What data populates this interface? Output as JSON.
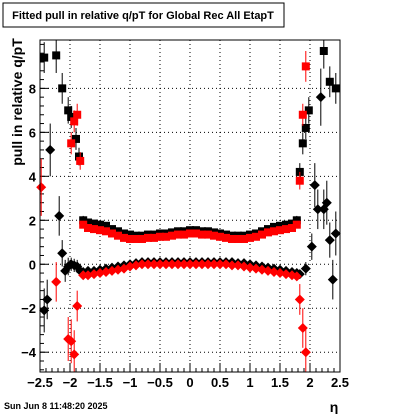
{
  "chart_data": {
    "type": "scatter",
    "title": "Fitted pull in relative q/pT for Global Rec All EtapT",
    "xlabel": "η",
    "ylabel": "pull in relative q/pT",
    "xlim": [
      -2.5,
      2.5
    ],
    "ylim": [
      -4.9,
      10.2
    ],
    "x_ticks": [
      "-2.5",
      "-2",
      "-1.5",
      "-1",
      "-0.5",
      "0",
      "0.5",
      "1",
      "1.5",
      "2",
      "2.5"
    ],
    "y_ticks": [
      "-4",
      "-2",
      "0",
      "2",
      "4",
      "6",
      "8"
    ],
    "grid": true,
    "timestamp": "Sun Jun  8 11:48:20 2025",
    "series": [
      {
        "marker": "square",
        "color": "#000000",
        "points": [
          {
            "x": -2.43,
            "y": 9.4,
            "err": 0.7
          },
          {
            "x": -2.23,
            "y": 9.5,
            "err": 0.8
          },
          {
            "x": -2.13,
            "y": 8.0,
            "err": 0.7
          },
          {
            "x": -2.03,
            "y": 7.0,
            "err": 0.6
          },
          {
            "x": -1.98,
            "y": 6.7,
            "err": 0.5
          },
          {
            "x": -1.9,
            "y": 5.7,
            "err": 0.5
          },
          {
            "x": -1.85,
            "y": 4.9,
            "err": 0.4
          },
          {
            "x": -1.78,
            "y": 2.0,
            "err": 0.2
          },
          {
            "x": -1.7,
            "y": 1.9
          },
          {
            "x": -1.6,
            "y": 1.85
          },
          {
            "x": -1.5,
            "y": 1.8
          },
          {
            "x": -1.4,
            "y": 1.75
          },
          {
            "x": -1.3,
            "y": 1.6
          },
          {
            "x": -1.2,
            "y": 1.5
          },
          {
            "x": -1.1,
            "y": 1.4
          },
          {
            "x": -1.0,
            "y": 1.35
          },
          {
            "x": -0.9,
            "y": 1.3
          },
          {
            "x": -0.8,
            "y": 1.3
          },
          {
            "x": -0.7,
            "y": 1.35
          },
          {
            "x": -0.6,
            "y": 1.35
          },
          {
            "x": -0.5,
            "y": 1.4
          },
          {
            "x": -0.4,
            "y": 1.4
          },
          {
            "x": -0.3,
            "y": 1.45
          },
          {
            "x": -0.2,
            "y": 1.5
          },
          {
            "x": -0.1,
            "y": 1.5
          },
          {
            "x": 0.0,
            "y": 1.55
          },
          {
            "x": 0.1,
            "y": 1.55
          },
          {
            "x": 0.2,
            "y": 1.5
          },
          {
            "x": 0.3,
            "y": 1.5
          },
          {
            "x": 0.4,
            "y": 1.45
          },
          {
            "x": 0.5,
            "y": 1.4
          },
          {
            "x": 0.6,
            "y": 1.35
          },
          {
            "x": 0.7,
            "y": 1.3
          },
          {
            "x": 0.8,
            "y": 1.3
          },
          {
            "x": 0.9,
            "y": 1.3
          },
          {
            "x": 1.0,
            "y": 1.35
          },
          {
            "x": 1.1,
            "y": 1.4
          },
          {
            "x": 1.2,
            "y": 1.5
          },
          {
            "x": 1.3,
            "y": 1.6
          },
          {
            "x": 1.4,
            "y": 1.7
          },
          {
            "x": 1.5,
            "y": 1.75
          },
          {
            "x": 1.6,
            "y": 1.8
          },
          {
            "x": 1.7,
            "y": 1.85
          },
          {
            "x": 1.78,
            "y": 2.0,
            "err": 0.2
          },
          {
            "x": 1.83,
            "y": 4.2,
            "err": 0.4
          },
          {
            "x": 1.88,
            "y": 5.5,
            "err": 0.5
          },
          {
            "x": 1.93,
            "y": 6.2,
            "err": 0.5
          },
          {
            "x": 1.98,
            "y": 7.0,
            "err": 0.6
          },
          {
            "x": 2.23,
            "y": 9.7,
            "err": 0.8
          },
          {
            "x": 2.33,
            "y": 8.3,
            "err": 0.7
          },
          {
            "x": 2.43,
            "y": 8.0,
            "err": 0.7
          }
        ]
      },
      {
        "marker": "square",
        "color": "#ff0000",
        "points": [
          {
            "x": -1.98,
            "y": 5.5,
            "err": 0.5
          },
          {
            "x": -1.93,
            "y": 6.5,
            "err": 0.5
          },
          {
            "x": -1.88,
            "y": 6.8,
            "err": 0.5
          },
          {
            "x": -1.83,
            "y": 4.7,
            "err": 0.4
          },
          {
            "x": -1.78,
            "y": 1.8
          },
          {
            "x": -1.7,
            "y": 1.65
          },
          {
            "x": -1.6,
            "y": 1.6
          },
          {
            "x": -1.5,
            "y": 1.55
          },
          {
            "x": -1.4,
            "y": 1.5
          },
          {
            "x": -1.3,
            "y": 1.4
          },
          {
            "x": -1.2,
            "y": 1.3
          },
          {
            "x": -1.1,
            "y": 1.2
          },
          {
            "x": -1.0,
            "y": 1.15
          },
          {
            "x": -0.9,
            "y": 1.15
          },
          {
            "x": -0.8,
            "y": 1.15
          },
          {
            "x": -0.7,
            "y": 1.2
          },
          {
            "x": -0.6,
            "y": 1.2
          },
          {
            "x": -0.5,
            "y": 1.25
          },
          {
            "x": -0.4,
            "y": 1.25
          },
          {
            "x": -0.3,
            "y": 1.3
          },
          {
            "x": -0.2,
            "y": 1.35
          },
          {
            "x": -0.1,
            "y": 1.35
          },
          {
            "x": 0.0,
            "y": 1.4
          },
          {
            "x": 0.1,
            "y": 1.4
          },
          {
            "x": 0.2,
            "y": 1.35
          },
          {
            "x": 0.3,
            "y": 1.35
          },
          {
            "x": 0.4,
            "y": 1.3
          },
          {
            "x": 0.5,
            "y": 1.25
          },
          {
            "x": 0.6,
            "y": 1.2
          },
          {
            "x": 0.7,
            "y": 1.15
          },
          {
            "x": 0.8,
            "y": 1.15
          },
          {
            "x": 0.9,
            "y": 1.15
          },
          {
            "x": 1.0,
            "y": 1.2
          },
          {
            "x": 1.1,
            "y": 1.25
          },
          {
            "x": 1.2,
            "y": 1.35
          },
          {
            "x": 1.3,
            "y": 1.45
          },
          {
            "x": 1.4,
            "y": 1.5
          },
          {
            "x": 1.5,
            "y": 1.55
          },
          {
            "x": 1.6,
            "y": 1.6
          },
          {
            "x": 1.7,
            "y": 1.65
          },
          {
            "x": 1.78,
            "y": 1.8
          },
          {
            "x": 1.83,
            "y": 3.8,
            "err": 0.4
          },
          {
            "x": 1.88,
            "y": 6.8,
            "err": 0.5
          },
          {
            "x": 1.93,
            "y": 9.0,
            "err": 0.7
          }
        ]
      },
      {
        "marker": "diamond",
        "color": "#000000",
        "points": [
          {
            "x": -2.43,
            "y": -2.1,
            "err": 1.0
          },
          {
            "x": -2.38,
            "y": -1.6,
            "err": 0.9
          },
          {
            "x": -2.33,
            "y": 5.2,
            "err": 1.2
          },
          {
            "x": -2.18,
            "y": 2.2,
            "err": 0.9
          },
          {
            "x": -2.13,
            "y": 0.5,
            "err": 0.6
          },
          {
            "x": -2.08,
            "y": -0.3,
            "err": 0.5
          },
          {
            "x": -2.03,
            "y": -0.1,
            "err": 0.4
          },
          {
            "x": -1.98,
            "y": 0.0,
            "err": 0.3
          },
          {
            "x": -1.93,
            "y": -0.05,
            "err": 0.3
          },
          {
            "x": -1.88,
            "y": -0.1,
            "err": 0.3
          },
          {
            "x": -1.83,
            "y": -0.3,
            "err": 0.2
          },
          {
            "x": -1.78,
            "y": -0.35
          },
          {
            "x": -1.7,
            "y": -0.3
          },
          {
            "x": -1.6,
            "y": -0.3
          },
          {
            "x": -1.5,
            "y": -0.25
          },
          {
            "x": -1.4,
            "y": -0.2
          },
          {
            "x": -1.3,
            "y": -0.15
          },
          {
            "x": -1.2,
            "y": -0.1
          },
          {
            "x": -1.1,
            "y": -0.05
          },
          {
            "x": -1.0,
            "y": 0.0
          },
          {
            "x": -0.9,
            "y": 0.05
          },
          {
            "x": -0.8,
            "y": 0.1
          },
          {
            "x": -0.7,
            "y": 0.1
          },
          {
            "x": -0.6,
            "y": 0.1
          },
          {
            "x": -0.5,
            "y": 0.1
          },
          {
            "x": -0.4,
            "y": 0.1
          },
          {
            "x": -0.3,
            "y": 0.1
          },
          {
            "x": -0.2,
            "y": 0.1
          },
          {
            "x": -0.1,
            "y": 0.1
          },
          {
            "x": 0.0,
            "y": 0.1
          },
          {
            "x": 0.1,
            "y": 0.1
          },
          {
            "x": 0.2,
            "y": 0.1
          },
          {
            "x": 0.3,
            "y": 0.1
          },
          {
            "x": 0.4,
            "y": 0.1
          },
          {
            "x": 0.5,
            "y": 0.1
          },
          {
            "x": 0.6,
            "y": 0.1
          },
          {
            "x": 0.7,
            "y": 0.1
          },
          {
            "x": 0.8,
            "y": 0.05
          },
          {
            "x": 0.9,
            "y": 0.05
          },
          {
            "x": 1.0,
            "y": 0.0
          },
          {
            "x": 1.1,
            "y": -0.05
          },
          {
            "x": 1.2,
            "y": -0.1
          },
          {
            "x": 1.3,
            "y": -0.15
          },
          {
            "x": 1.4,
            "y": -0.2
          },
          {
            "x": 1.5,
            "y": -0.25
          },
          {
            "x": 1.6,
            "y": -0.3
          },
          {
            "x": 1.7,
            "y": -0.35
          },
          {
            "x": 1.78,
            "y": -0.4
          },
          {
            "x": 1.83,
            "y": -0.45,
            "err": 0.2
          },
          {
            "x": 1.93,
            "y": -0.2,
            "err": 0.3
          },
          {
            "x": 2.03,
            "y": 0.8,
            "err": 0.6
          },
          {
            "x": 2.08,
            "y": 3.6,
            "err": 1.0
          },
          {
            "x": 2.13,
            "y": 2.5,
            "err": 0.9
          },
          {
            "x": 2.18,
            "y": 7.6,
            "err": 1.3
          },
          {
            "x": 2.23,
            "y": 2.5,
            "err": 0.9
          },
          {
            "x": 2.28,
            "y": 2.8,
            "err": 1.0
          },
          {
            "x": 2.33,
            "y": 1.1,
            "err": 0.8
          },
          {
            "x": 2.38,
            "y": -0.7,
            "err": 0.9
          },
          {
            "x": 2.43,
            "y": 1.4,
            "err": 1.0
          }
        ]
      },
      {
        "marker": "diamond",
        "color": "#ff0000",
        "points": [
          {
            "x": -2.48,
            "y": 3.5,
            "err": 1.3
          },
          {
            "x": -2.23,
            "y": -0.8,
            "err": 0.9
          },
          {
            "x": -2.03,
            "y": -3.4,
            "err": 1.0
          },
          {
            "x": -1.98,
            "y": -3.5,
            "err": 1.0
          },
          {
            "x": -1.93,
            "y": -4.1,
            "err": 1.1
          },
          {
            "x": -1.88,
            "y": -1.9,
            "err": 0.7
          },
          {
            "x": -1.78,
            "y": -0.5
          },
          {
            "x": -1.7,
            "y": -0.5
          },
          {
            "x": -1.6,
            "y": -0.45
          },
          {
            "x": -1.5,
            "y": -0.4
          },
          {
            "x": -1.4,
            "y": -0.35
          },
          {
            "x": -1.3,
            "y": -0.3
          },
          {
            "x": -1.2,
            "y": -0.25
          },
          {
            "x": -1.1,
            "y": -0.2
          },
          {
            "x": -1.0,
            "y": -0.1
          },
          {
            "x": -0.9,
            "y": -0.05
          },
          {
            "x": -0.8,
            "y": 0.0
          },
          {
            "x": -0.7,
            "y": 0.0
          },
          {
            "x": -0.6,
            "y": 0.0
          },
          {
            "x": -0.5,
            "y": 0.0
          },
          {
            "x": -0.4,
            "y": 0.0
          },
          {
            "x": -0.3,
            "y": 0.0
          },
          {
            "x": -0.2,
            "y": 0.0
          },
          {
            "x": -0.1,
            "y": 0.0
          },
          {
            "x": 0.0,
            "y": 0.0
          },
          {
            "x": 0.1,
            "y": 0.0
          },
          {
            "x": 0.2,
            "y": 0.0
          },
          {
            "x": 0.3,
            "y": 0.0
          },
          {
            "x": 0.4,
            "y": 0.0
          },
          {
            "x": 0.5,
            "y": 0.0
          },
          {
            "x": 0.6,
            "y": 0.0
          },
          {
            "x": 0.7,
            "y": -0.05
          },
          {
            "x": 0.8,
            "y": -0.05
          },
          {
            "x": 0.9,
            "y": -0.1
          },
          {
            "x": 1.0,
            "y": -0.15
          },
          {
            "x": 1.1,
            "y": -0.2
          },
          {
            "x": 1.2,
            "y": -0.25
          },
          {
            "x": 1.3,
            "y": -0.3
          },
          {
            "x": 1.4,
            "y": -0.35
          },
          {
            "x": 1.5,
            "y": -0.4
          },
          {
            "x": 1.6,
            "y": -0.45
          },
          {
            "x": 1.7,
            "y": -0.5
          },
          {
            "x": 1.78,
            "y": -0.55
          },
          {
            "x": 1.83,
            "y": -1.6,
            "err": 0.7
          },
          {
            "x": 1.88,
            "y": -2.9,
            "err": 0.9
          },
          {
            "x": 1.93,
            "y": -4.0,
            "err": 1.1
          }
        ]
      }
    ]
  }
}
